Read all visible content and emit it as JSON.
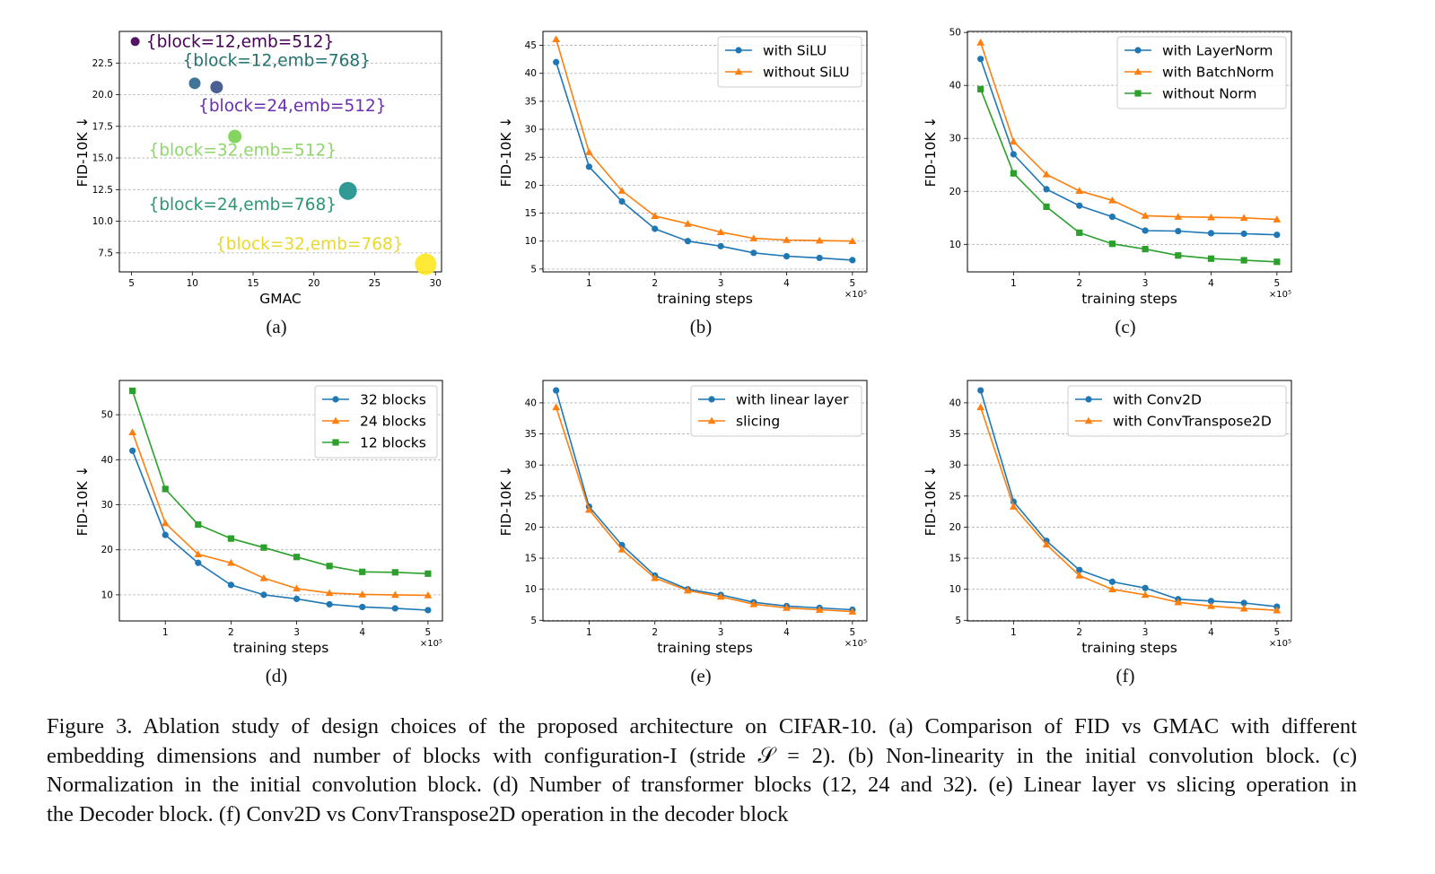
{
  "colors": {
    "blue": "#1f77b4",
    "orange": "#ff7f0e",
    "green": "#2ca02c",
    "grid": "#b0b0b0",
    "axis": "#000000"
  },
  "chart_data": [
    {
      "id": "a",
      "type": "scatter",
      "panel_label": "(a)",
      "xlabel": "GMAC",
      "ylabel": "FID-10K ↓",
      "xlim": [
        4,
        30.5
      ],
      "ylim": [
        6,
        25
      ],
      "xticks": [
        5,
        10,
        15,
        20,
        25,
        30
      ],
      "yticks": [
        7.5,
        10.0,
        12.5,
        15.0,
        17.5,
        20.0,
        22.5
      ],
      "xtick_labels": [
        "5",
        "10",
        "15",
        "20",
        "25",
        "30"
      ],
      "ytick_labels": [
        "7.5",
        "10.0",
        "12.5",
        "15.0",
        "17.5",
        "20.0",
        "22.5"
      ],
      "grid": "y-dashed",
      "points": [
        {
          "label": "{block=12,emb=512}",
          "x": 5.3,
          "y": 24.2,
          "size": 5,
          "color": "#440154"
        },
        {
          "label": "{block=12,emb=768}",
          "x": 10.2,
          "y": 20.9,
          "size": 6.5,
          "color": "#31688e"
        },
        {
          "label": "{block=24,emb=512}",
          "x": 12.0,
          "y": 20.6,
          "size": 7,
          "color": "#3b528b"
        },
        {
          "label": "{block=32,emb=512}",
          "x": 13.5,
          "y": 16.7,
          "size": 7.5,
          "color": "#7ad151"
        },
        {
          "label": "{block=24,emb=768}",
          "x": 22.8,
          "y": 12.4,
          "size": 10,
          "color": "#21918c"
        },
        {
          "label": "{block=32,emb=768}",
          "x": 29.2,
          "y": 6.6,
          "size": 12,
          "color": "#fde725"
        }
      ],
      "annotations": [
        {
          "text": "{block=12,emb=512}",
          "x": 6.2,
          "y": 24.2,
          "color": "#440154"
        },
        {
          "text": "{block=12,emb=768}",
          "x": 9.2,
          "y": 22.7,
          "color": "#21716d"
        },
        {
          "text": "{block=24,emb=512}",
          "x": 10.5,
          "y": 19.1,
          "color": "#6a2fb0"
        },
        {
          "text": "{block=32,emb=512}",
          "x": 6.4,
          "y": 15.6,
          "color": "#8fd66a"
        },
        {
          "text": "{block=24,emb=768}",
          "x": 6.4,
          "y": 11.3,
          "color": "#2a9670"
        },
        {
          "text": "{block=32,emb=768}",
          "x": 11.9,
          "y": 8.2,
          "color": "#e8d82a"
        }
      ]
    },
    {
      "id": "b",
      "type": "line",
      "panel_label": "(b)",
      "xlabel": "training steps",
      "ylabel": "FID-10K ↓",
      "x_offset_label": "×10⁵",
      "xlim": [
        0.3,
        5.22
      ],
      "ylim": [
        4.5,
        47.5
      ],
      "xticks": [
        1,
        2,
        3,
        4,
        5
      ],
      "yticks": [
        5,
        10,
        15,
        20,
        25,
        30,
        35,
        40,
        45
      ],
      "xtick_labels": [
        "1",
        "2",
        "3",
        "4",
        "5"
      ],
      "ytick_labels": [
        "5",
        "10",
        "15",
        "20",
        "25",
        "30",
        "35",
        "40",
        "45"
      ],
      "grid": "y-dashed",
      "legend_position": "top-right",
      "x": [
        0.5,
        1.0,
        1.5,
        2.0,
        2.5,
        3.0,
        3.5,
        4.0,
        4.5,
        5.0
      ],
      "series": [
        {
          "name": "with SiLU",
          "color": "#1f77b4",
          "marker": "circle",
          "values": [
            42.0,
            23.3,
            17.1,
            12.2,
            10.0,
            9.1,
            7.9,
            7.3,
            7.0,
            6.6
          ]
        },
        {
          "name": "without SiLU",
          "color": "#ff7f0e",
          "marker": "triangle",
          "values": [
            46.1,
            25.9,
            19.0,
            14.5,
            13.1,
            11.6,
            10.5,
            10.2,
            10.1,
            10.0
          ]
        }
      ]
    },
    {
      "id": "c",
      "type": "line",
      "panel_label": "(c)",
      "xlabel": "training steps",
      "ylabel": "FID-10K ↓",
      "x_offset_label": "×10⁵",
      "xlim": [
        0.3,
        5.22
      ],
      "ylim": [
        4.8,
        50.2
      ],
      "xticks": [
        1,
        2,
        3,
        4,
        5
      ],
      "yticks": [
        10,
        20,
        30,
        40,
        50
      ],
      "xtick_labels": [
        "1",
        "2",
        "3",
        "4",
        "5"
      ],
      "ytick_labels": [
        "10",
        "20",
        "30",
        "40",
        "50"
      ],
      "grid": "y-dashed",
      "legend_position": "top-right",
      "x": [
        0.5,
        1.0,
        1.5,
        2.0,
        2.5,
        3.0,
        3.5,
        4.0,
        4.5,
        5.0
      ],
      "series": [
        {
          "name": "with LayerNorm",
          "color": "#1f77b4",
          "marker": "circle",
          "values": [
            45.0,
            27.0,
            20.4,
            17.3,
            15.2,
            12.6,
            12.5,
            12.1,
            12.0,
            11.8
          ]
        },
        {
          "name": "with BatchNorm",
          "color": "#ff7f0e",
          "marker": "triangle",
          "values": [
            48.1,
            29.4,
            23.2,
            20.1,
            18.3,
            15.4,
            15.2,
            15.1,
            15.0,
            14.7
          ]
        },
        {
          "name": "without Norm",
          "color": "#2ca02c",
          "marker": "square",
          "values": [
            39.3,
            23.4,
            17.1,
            12.2,
            10.1,
            9.1,
            7.9,
            7.3,
            7.0,
            6.7
          ]
        }
      ]
    },
    {
      "id": "d",
      "type": "line",
      "panel_label": "(d)",
      "xlabel": "training steps",
      "ylabel": "FID-10K ↓",
      "x_offset_label": "×10⁵",
      "xlim": [
        0.3,
        5.22
      ],
      "ylim": [
        4.2,
        57.6
      ],
      "xticks": [
        1,
        2,
        3,
        4,
        5
      ],
      "yticks": [
        10,
        20,
        30,
        40,
        50
      ],
      "xtick_labels": [
        "1",
        "2",
        "3",
        "4",
        "5"
      ],
      "ytick_labels": [
        "10",
        "20",
        "30",
        "40",
        "50"
      ],
      "grid": "y-dashed",
      "legend_position": "top-right",
      "x": [
        0.5,
        1.0,
        1.5,
        2.0,
        2.5,
        3.0,
        3.5,
        4.0,
        4.5,
        5.0
      ],
      "series": [
        {
          "name": "32 blocks",
          "color": "#1f77b4",
          "marker": "circle",
          "values": [
            42.0,
            23.3,
            17.1,
            12.2,
            10.0,
            9.1,
            7.9,
            7.3,
            7.0,
            6.6
          ]
        },
        {
          "name": "24 blocks",
          "color": "#ff7f0e",
          "marker": "triangle",
          "values": [
            46.1,
            25.9,
            19.0,
            17.1,
            13.7,
            11.4,
            10.4,
            10.1,
            10.0,
            9.9
          ]
        },
        {
          "name": "12 blocks",
          "color": "#2ca02c",
          "marker": "square",
          "values": [
            55.3,
            33.5,
            25.6,
            22.5,
            20.5,
            18.4,
            16.4,
            15.1,
            15.0,
            14.7
          ]
        }
      ]
    },
    {
      "id": "e",
      "type": "line",
      "panel_label": "(e)",
      "xlabel": "training steps",
      "ylabel": "FID-10K ↓",
      "x_offset_label": "×10⁵",
      "xlim": [
        0.3,
        5.22
      ],
      "ylim": [
        4.9,
        43.6
      ],
      "xticks": [
        1,
        2,
        3,
        4,
        5
      ],
      "yticks": [
        5,
        10,
        15,
        20,
        25,
        30,
        35,
        40
      ],
      "xtick_labels": [
        "1",
        "2",
        "3",
        "4",
        "5"
      ],
      "ytick_labels": [
        "5",
        "10",
        "15",
        "20",
        "25",
        "30",
        "35",
        "40"
      ],
      "grid": "y-dashed",
      "legend_position": "top-right",
      "x": [
        0.5,
        1.0,
        1.5,
        2.0,
        2.5,
        3.0,
        3.5,
        4.0,
        4.5,
        5.0
      ],
      "series": [
        {
          "name": "with linear layer",
          "color": "#1f77b4",
          "marker": "circle",
          "values": [
            42.0,
            23.3,
            17.1,
            12.2,
            10.0,
            9.1,
            7.9,
            7.3,
            7.0,
            6.7
          ]
        },
        {
          "name": "slicing",
          "color": "#ff7f0e",
          "marker": "triangle",
          "values": [
            39.3,
            22.8,
            16.4,
            11.8,
            9.8,
            8.8,
            7.6,
            7.0,
            6.7,
            6.4
          ]
        }
      ]
    },
    {
      "id": "f",
      "type": "line",
      "panel_label": "(f)",
      "xlabel": "training steps",
      "ylabel": "FID-10K ↓",
      "x_offset_label": "×10⁵",
      "xlim": [
        0.3,
        5.22
      ],
      "ylim": [
        4.9,
        43.6
      ],
      "xticks": [
        1,
        2,
        3,
        4,
        5
      ],
      "yticks": [
        5,
        10,
        15,
        20,
        25,
        30,
        35,
        40
      ],
      "xtick_labels": [
        "1",
        "2",
        "3",
        "4",
        "5"
      ],
      "ytick_labels": [
        "5",
        "10",
        "15",
        "20",
        "25",
        "30",
        "35",
        "40"
      ],
      "grid": "y-dashed",
      "legend_position": "top-right",
      "x": [
        0.5,
        1.0,
        1.5,
        2.0,
        2.5,
        3.0,
        3.5,
        4.0,
        4.5,
        5.0
      ],
      "series": [
        {
          "name": "with Conv2D",
          "color": "#1f77b4",
          "marker": "circle",
          "values": [
            42.0,
            24.1,
            17.8,
            13.1,
            11.2,
            10.2,
            8.4,
            8.1,
            7.8,
            7.2
          ]
        },
        {
          "name": "with ConvTranspose2D",
          "color": "#ff7f0e",
          "marker": "triangle",
          "values": [
            39.3,
            23.3,
            17.2,
            12.2,
            10.0,
            9.1,
            7.9,
            7.3,
            6.9,
            6.6
          ]
        }
      ]
    }
  ],
  "caption": {
    "lines": [
      "Figure 3.  Ablation study of design choices of the proposed architecture on CIFAR-10. (a) Comparison of FID vs GMAC with different",
      "embedding dimensions and number of blocks with configuration-I (stride 𝒮 = 2).  (b) Non-linearity in the initial convolution block.  (c)",
      "Normalization in the initial convolution block.  (d) Number of transformer blocks (12, 24 and 32). (e) Linear layer vs slicing operation in",
      "the Decoder block.  (f) Conv2D vs ConvTranspose2D operation in the decoder block"
    ]
  }
}
